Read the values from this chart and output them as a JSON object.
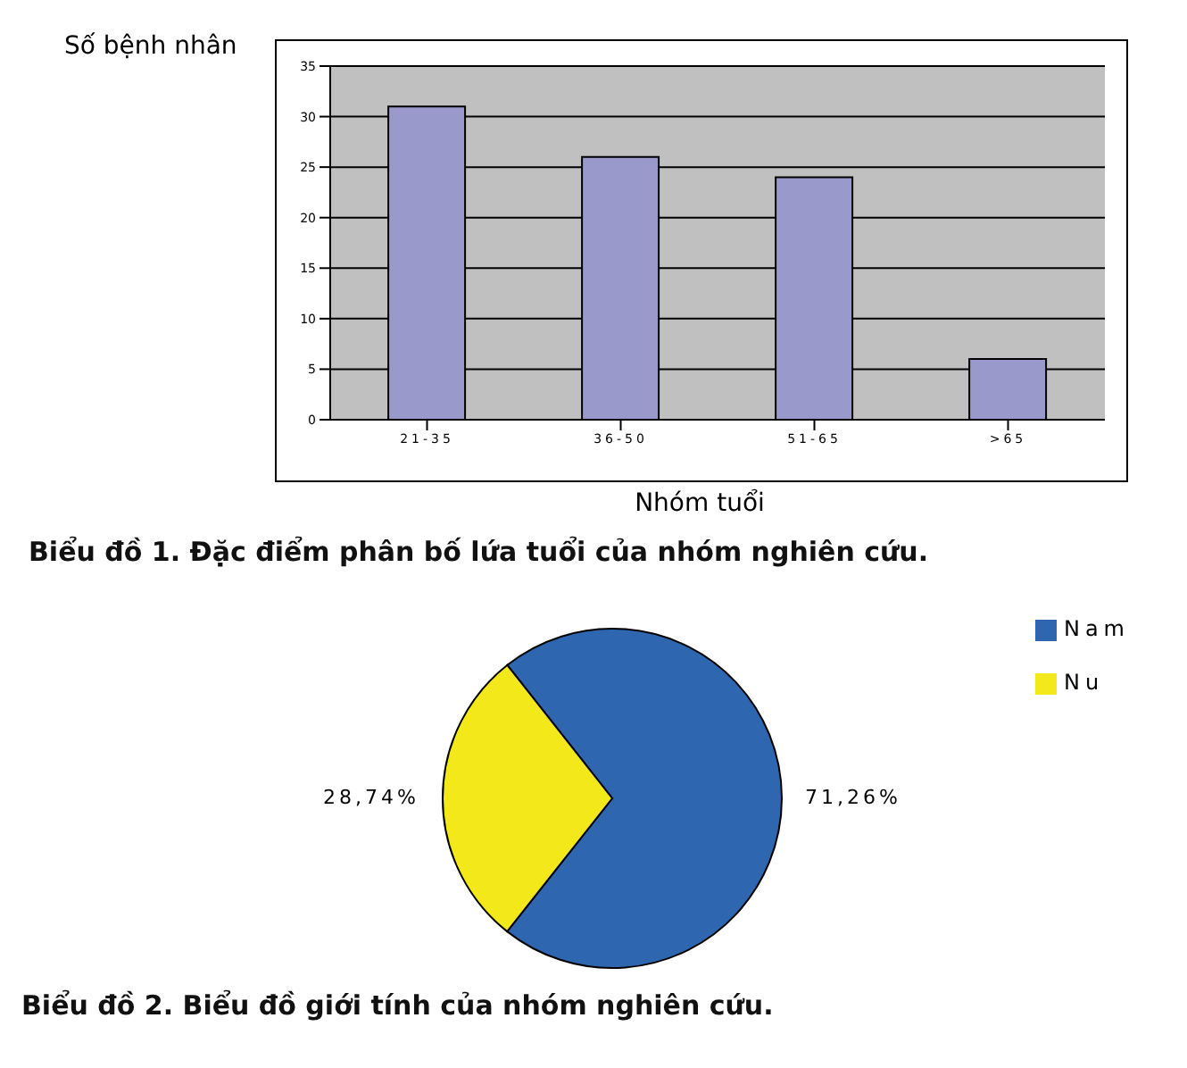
{
  "chart_data": [
    {
      "type": "bar",
      "title": "Biểu đồ 1. Đặc điểm phân bố lứa tuổi của nhóm nghiên cứu.",
      "xlabel": "Nhóm tuổi",
      "ylabel": "Số bệnh nhân",
      "categories": [
        "21-35",
        "36-50",
        "51-65",
        ">65"
      ],
      "values": [
        31,
        26,
        24,
        6
      ],
      "color": "#9999cc",
      "ylim": [
        0,
        35
      ],
      "yticks": [
        0,
        5,
        10,
        15,
        20,
        25,
        30,
        35
      ],
      "grid": "y"
    },
    {
      "type": "pie",
      "title": "Biểu đồ 2. Biểu đồ giới tính của nhóm nghiên cứu.",
      "categories": [
        "Nam",
        "Nu"
      ],
      "values": [
        71.26,
        28.74
      ],
      "colors": [
        "#2e67b0",
        "#f2e81a"
      ],
      "value_labels": [
        "71,26%",
        "28,74%"
      ],
      "legend": "top right"
    }
  ]
}
